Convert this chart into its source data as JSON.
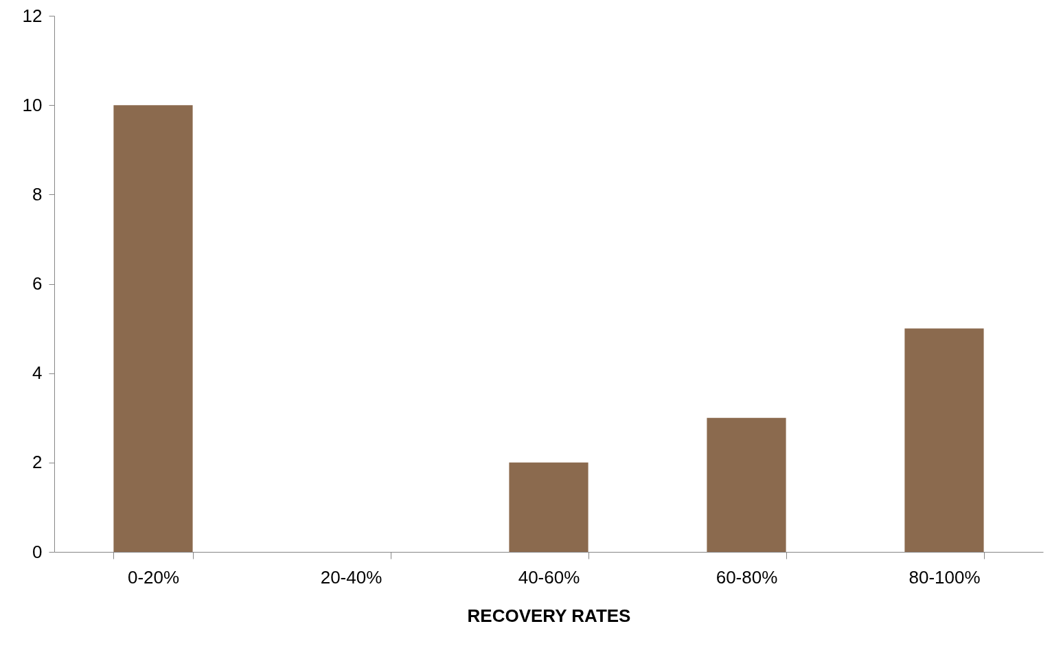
{
  "chart_data": {
    "type": "bar",
    "xlabel": "RECOVERY RATES",
    "categories": [
      "0-20%",
      "20-40%",
      "40-60%",
      "60-80%",
      "80-100%"
    ],
    "values": [
      10,
      0,
      2,
      3,
      5
    ],
    "color": "#8b6a4e",
    "ylim": [
      0,
      12
    ],
    "yticks": [
      0,
      2,
      4,
      6,
      8,
      10,
      12
    ],
    "grid": false
  }
}
